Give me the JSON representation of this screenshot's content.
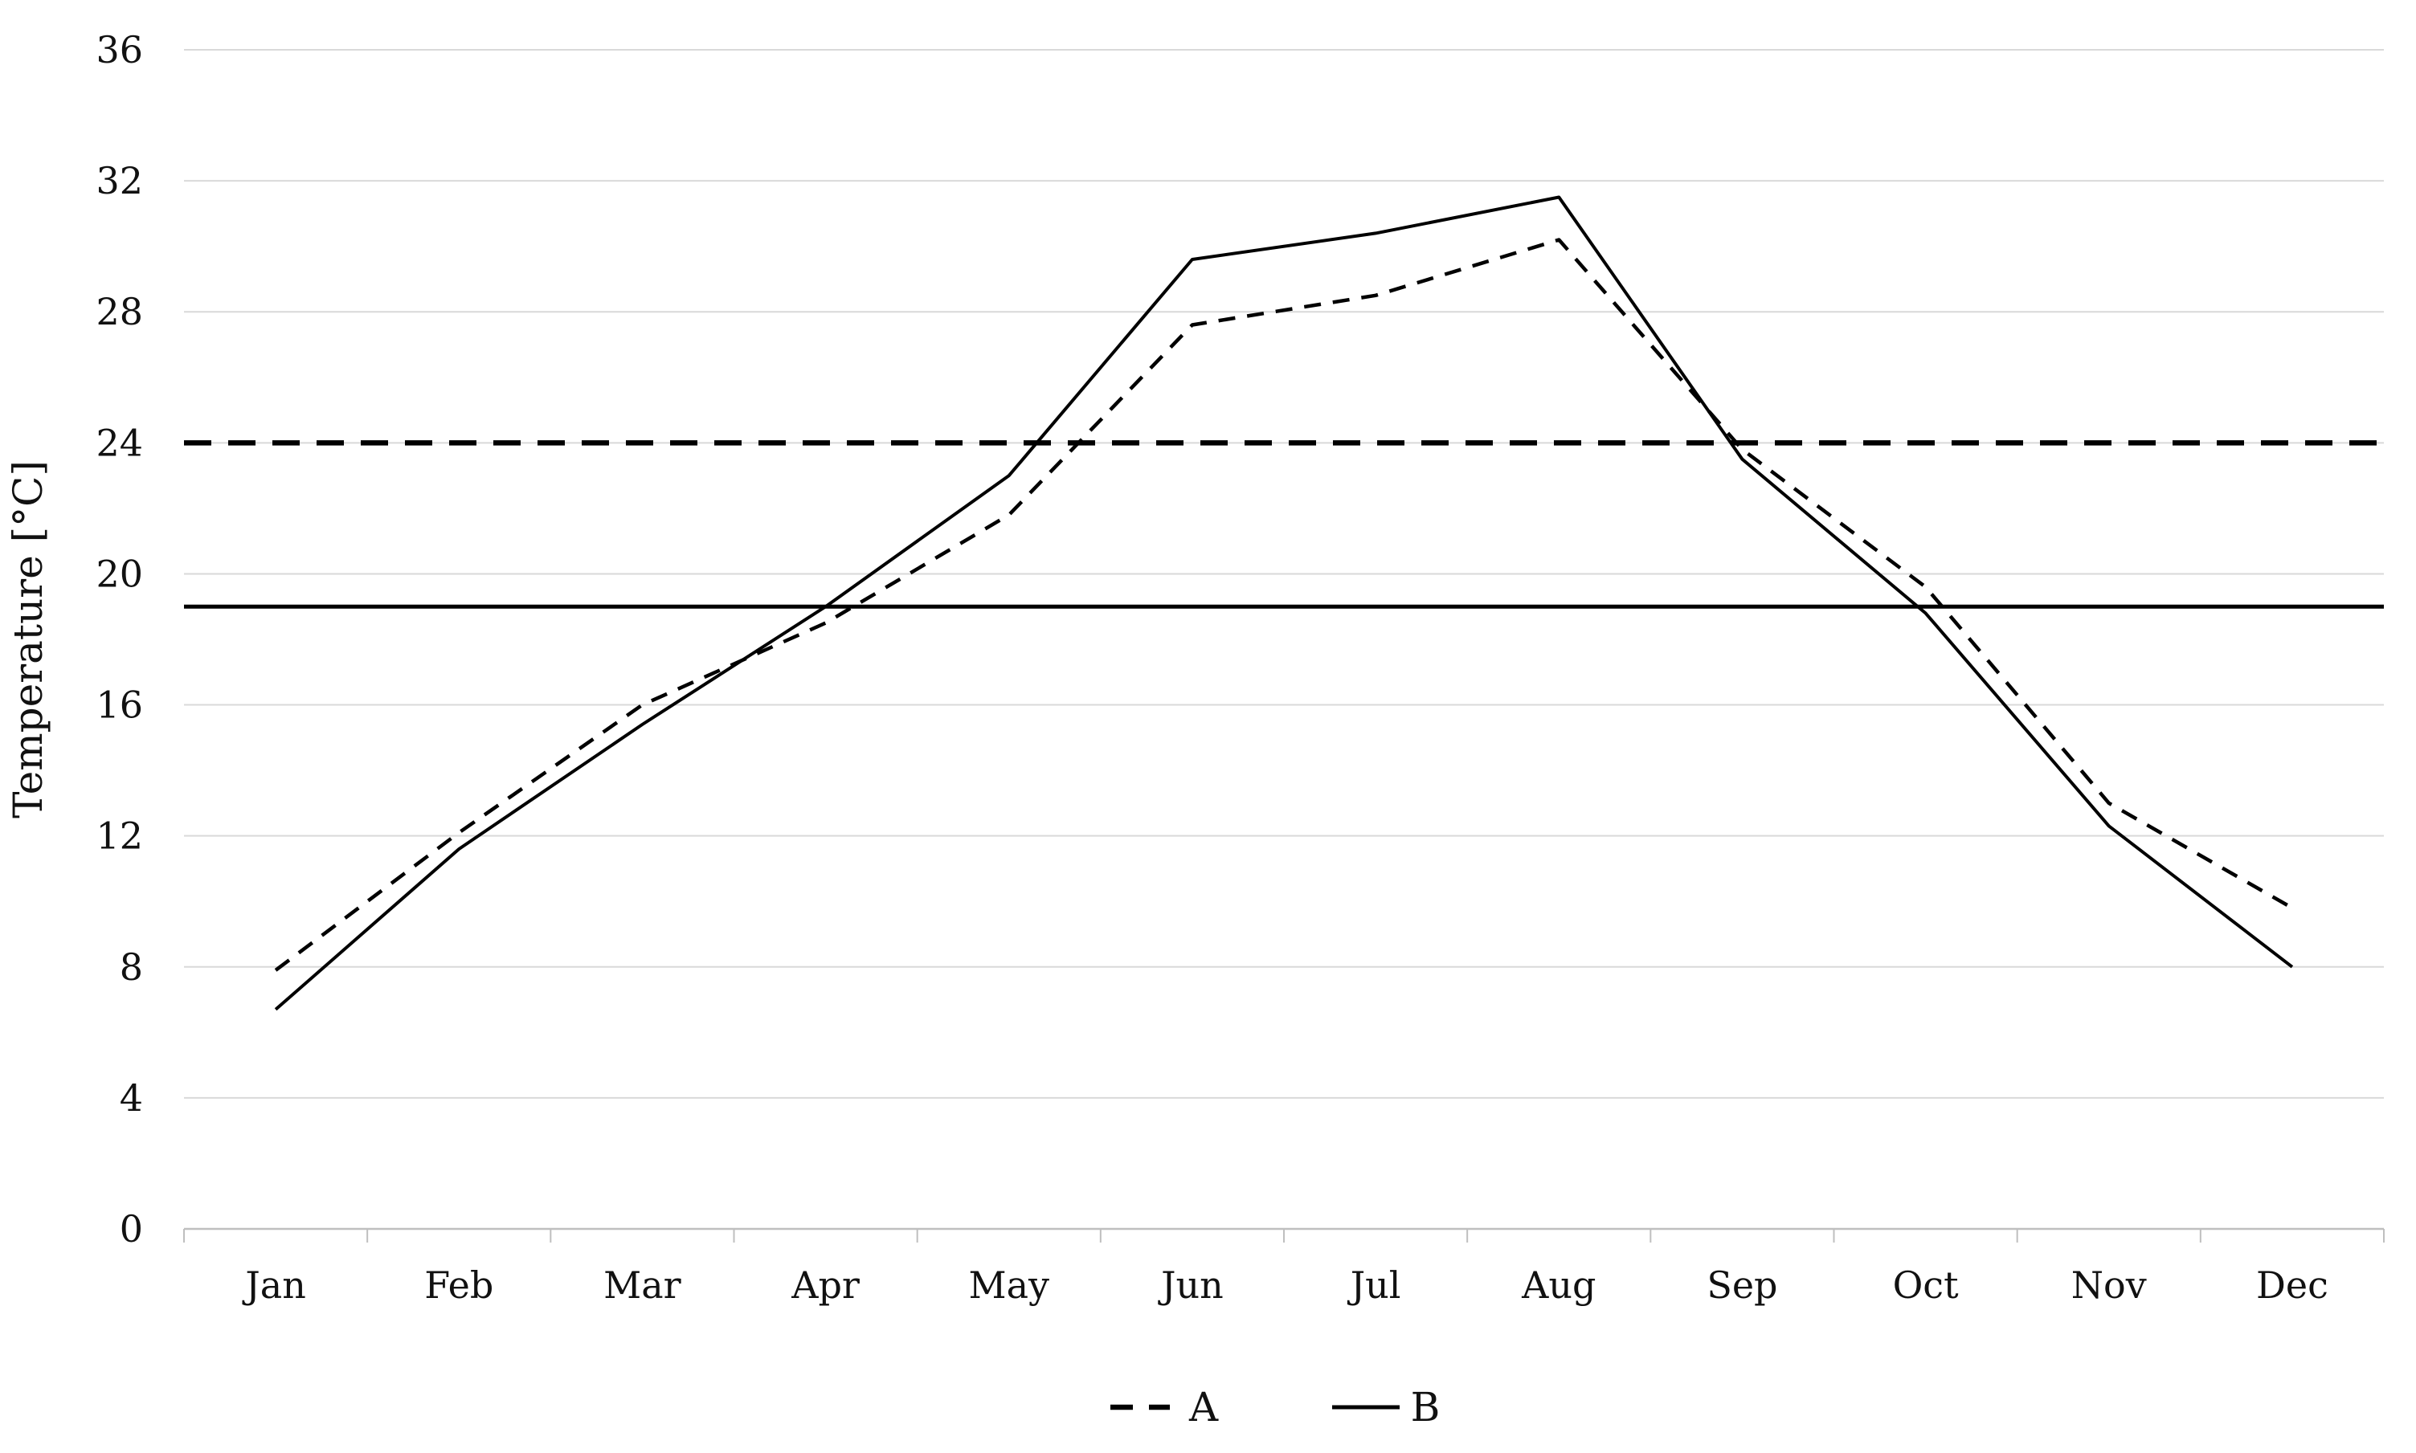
{
  "figure": {
    "background": "#ffffff",
    "text_color": "#111111",
    "legend": [
      {
        "label": "A",
        "style": "dashed"
      },
      {
        "label": "B",
        "style": "solid"
      }
    ]
  },
  "chart_data": {
    "type": "line",
    "title": "",
    "xlabel": "",
    "ylabel": "Temperature [°C]",
    "categories": [
      "Jan",
      "Feb",
      "Mar",
      "Apr",
      "May",
      "Jun",
      "Jul",
      "Aug",
      "Sep",
      "Oct",
      "Nov",
      "Dec"
    ],
    "series": [
      {
        "name": "A",
        "style": "dashed",
        "color": "#000000",
        "values": [
          7.9,
          12.1,
          16.0,
          18.5,
          21.8,
          27.6,
          28.5,
          30.2,
          23.8,
          19.6,
          13.0,
          9.8
        ]
      },
      {
        "name": "B",
        "style": "solid",
        "color": "#000000",
        "values": [
          6.7,
          11.6,
          15.4,
          19.0,
          23.0,
          29.6,
          30.4,
          31.5,
          23.5,
          18.8,
          12.3,
          8.0
        ]
      }
    ],
    "reference_lines": [
      {
        "value": 24,
        "style": "dashed",
        "color": "#000000"
      },
      {
        "value": 19,
        "style": "solid",
        "color": "#000000"
      }
    ],
    "ylim": [
      0,
      36
    ],
    "ytick_step": 4,
    "ytick_labels": [
      "0",
      "4",
      "8",
      "12",
      "16",
      "20",
      "24",
      "28",
      "32",
      "36"
    ],
    "grid": "horizontal",
    "grid_color": "#d9d9d9",
    "axis_color": "#bfbfbf",
    "legend_position": "bottom-center"
  }
}
